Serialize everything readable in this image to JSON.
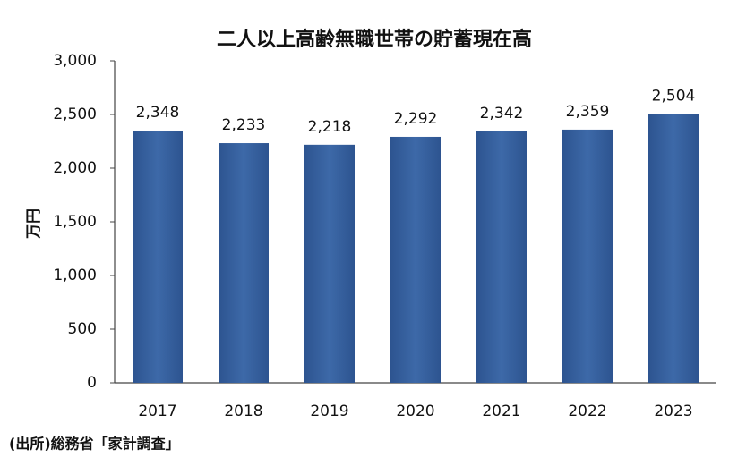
{
  "chart_data": {
    "type": "bar",
    "title": "二人以上高齢無職世帯の貯蓄現在高",
    "y_label": "万円",
    "source": "(出所)総務省「家計調査」",
    "categories": [
      "2017",
      "2018",
      "2019",
      "2020",
      "2021",
      "2022",
      "2023"
    ],
    "values": [
      2348,
      2233,
      2218,
      2292,
      2342,
      2359,
      2504
    ],
    "value_labels": [
      "2,348",
      "2,233",
      "2,218",
      "2,292",
      "2,342",
      "2,359",
      "2,504"
    ],
    "color": "#3a64a0",
    "ylim": [
      0,
      3000
    ],
    "yticks": [
      0,
      500,
      {
        "value": 1000,
        "label": "1,000"
      },
      {
        "value": 1500,
        "label": "1,500"
      },
      {
        "value": 2000,
        "label": "2,000"
      },
      {
        "value": 2500,
        "label": "2,500"
      },
      {
        "value": 3000,
        "label": "3,000"
      }
    ],
    "grid": false
  }
}
